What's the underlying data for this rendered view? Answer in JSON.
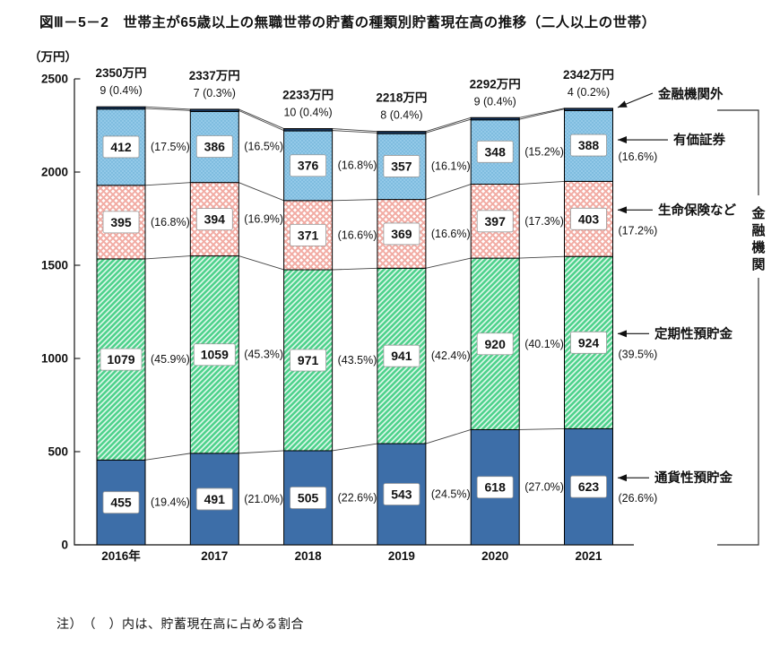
{
  "page": {
    "title": "図Ⅲ－5－2　世帯主が65歳以上の無職世帯の貯蓄の種類別貯蓄現在高の推移（二人以上の世帯）",
    "note": "注）　（　）内は、貯蓄現在高に占める割合"
  },
  "chart_data": {
    "type": "bar",
    "variant": "stacked",
    "title": "世帯主が65歳以上の無職世帯の貯蓄の種類別貯蓄現在高の推移（二人以上の世帯）",
    "ylabel": "（万円）",
    "unit": "万円",
    "ylim": [
      0,
      2500
    ],
    "ytick_interval": 500,
    "grid": false,
    "legend_position": "right-annotations",
    "categories": [
      "2016年",
      "2017",
      "2018",
      "2019",
      "2020",
      "2021"
    ],
    "totals": [
      2350,
      2337,
      2233,
      2218,
      2292,
      2342
    ],
    "total_labels": [
      "2350万円",
      "2337万円",
      "2233万円",
      "2218万円",
      "2292万円",
      "2342万円"
    ],
    "series": [
      {
        "name": "通貨性預貯金",
        "values": [
          455,
          491,
          505,
          543,
          618,
          623
        ],
        "pct_labels": [
          "(19.4%)",
          "(21.0%)",
          "(22.6%)",
          "(24.5%)",
          "(27.0%)",
          "(26.6%)"
        ],
        "fill": "#3d6ea8",
        "pattern": "solid"
      },
      {
        "name": "定期性預貯金",
        "values": [
          1079,
          1059,
          971,
          941,
          920,
          924
        ],
        "pct_labels": [
          "(45.9%)",
          "(45.3%)",
          "(43.5%)",
          "(42.4%)",
          "(40.1%)",
          "(39.5%)"
        ],
        "fill": "#4fd28c",
        "pattern": "diagonal-stripes",
        "pattern_color": "#e3f9ee"
      },
      {
        "name": "生命保険など",
        "values": [
          395,
          394,
          371,
          369,
          397,
          403
        ],
        "pct_labels": [
          "(16.8%)",
          "(16.9%)",
          "(16.6%)",
          "(16.6%)",
          "(17.3%)",
          "(17.2%)"
        ],
        "fill": "#ffffff",
        "pattern": "diamond-lattice",
        "pattern_color": "#f2aca4"
      },
      {
        "name": "有価証券",
        "values": [
          412,
          386,
          376,
          357,
          348,
          388
        ],
        "pct_labels": [
          "(17.5%)",
          "(16.5%)",
          "(16.8%)",
          "(16.1%)",
          "(15.2%)",
          "(16.6%)"
        ],
        "fill": "#93c9e8",
        "pattern": "dots",
        "pattern_color": "#5fa9d2"
      },
      {
        "name": "金融機関外",
        "values": [
          9,
          7,
          10,
          8,
          9,
          4
        ],
        "top_labels": [
          "9 (0.4%)",
          "7 (0.3%)",
          "10 (0.4%)",
          "8 (0.4%)",
          "9 (0.4%)",
          "4 (0.2%)"
        ],
        "fill": "#17365d",
        "pattern": "solid"
      }
    ],
    "right_annotations": [
      {
        "label": "金融機関外"
      },
      {
        "label": "有価証券"
      },
      {
        "label": "生命保険など"
      },
      {
        "label": "定期性預貯金"
      },
      {
        "label": "通貨性預貯金"
      }
    ],
    "bracket_label": "金融機関"
  }
}
